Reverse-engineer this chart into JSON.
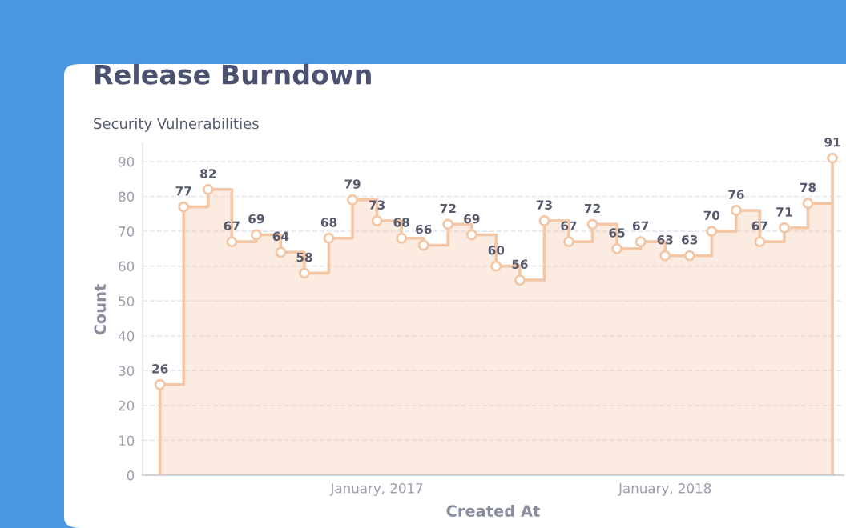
{
  "chart_data": {
    "type": "area",
    "title": "Release Burndown",
    "subtitle": "Security Vulnerabilities",
    "xlabel": "Created At",
    "ylabel": "Count",
    "x": [
      "2016-04",
      "2016-05",
      "2016-06",
      "2016-07",
      "2016-08",
      "2016-09",
      "2016-10",
      "2016-11",
      "2016-12",
      "2017-01",
      "2017-02",
      "2017-03",
      "2017-04",
      "2017-05",
      "2017-06",
      "2017-07",
      "2017-08",
      "2017-09",
      "2017-10",
      "2017-11",
      "2017-12",
      "2018-01",
      "2018-02",
      "2018-03",
      "2018-04",
      "2018-05",
      "2018-06",
      "2018-07",
      "2018-08"
    ],
    "series": [
      {
        "color": "#f3c6a5",
        "values": [
          26,
          77,
          82,
          67,
          69,
          64,
          58,
          68,
          79,
          73,
          68,
          66,
          72,
          69,
          60,
          56,
          73,
          67,
          72,
          65,
          67,
          63,
          63,
          70,
          76,
          67,
          71,
          78,
          91
        ]
      }
    ],
    "xlim": [
      "2016-03-10",
      "2018-08-15"
    ],
    "xticks": [
      {
        "value": "2017-01",
        "label": "January, 2017"
      },
      {
        "value": "2018-01",
        "label": "January, 2018"
      }
    ],
    "ylim": [
      0,
      95
    ],
    "yticks": [
      0,
      10,
      20,
      30,
      40,
      50,
      60,
      70,
      80,
      90
    ],
    "grid": "y",
    "marker": "circle",
    "data_labels": true
  }
}
